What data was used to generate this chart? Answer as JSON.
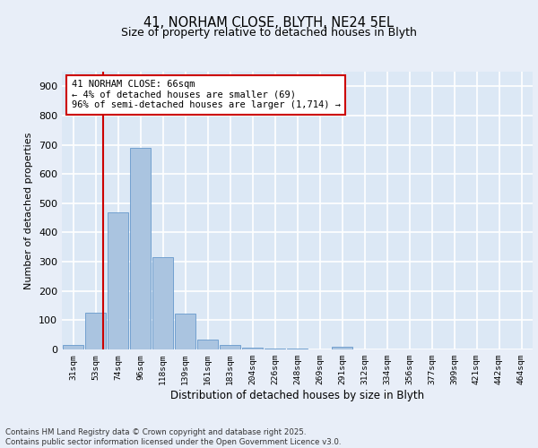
{
  "title1": "41, NORHAM CLOSE, BLYTH, NE24 5EL",
  "title2": "Size of property relative to detached houses in Blyth",
  "xlabel": "Distribution of detached houses by size in Blyth",
  "ylabel": "Number of detached properties",
  "categories": [
    "31sqm",
    "53sqm",
    "74sqm",
    "96sqm",
    "118sqm",
    "139sqm",
    "161sqm",
    "183sqm",
    "204sqm",
    "226sqm",
    "248sqm",
    "269sqm",
    "291sqm",
    "312sqm",
    "334sqm",
    "356sqm",
    "377sqm",
    "399sqm",
    "421sqm",
    "442sqm",
    "464sqm"
  ],
  "values": [
    15,
    125,
    470,
    690,
    315,
    123,
    35,
    15,
    5,
    3,
    2,
    1,
    10,
    0,
    0,
    0,
    0,
    0,
    0,
    0,
    0
  ],
  "bar_color": "#aac4e0",
  "bar_edge_color": "#6699cc",
  "vline_x": 1.35,
  "vline_color": "#cc0000",
  "annotation_text": "41 NORHAM CLOSE: 66sqm\n← 4% of detached houses are smaller (69)\n96% of semi-detached houses are larger (1,714) →",
  "annotation_box_color": "#ffffff",
  "annotation_box_edge": "#cc0000",
  "ylim": [
    0,
    950
  ],
  "yticks": [
    0,
    100,
    200,
    300,
    400,
    500,
    600,
    700,
    800,
    900
  ],
  "footer1": "Contains HM Land Registry data © Crown copyright and database right 2025.",
  "footer2": "Contains public sector information licensed under the Open Government Licence v3.0.",
  "bg_color": "#dce8f5",
  "fig_bg_color": "#e8eef8",
  "grid_color": "#ffffff"
}
